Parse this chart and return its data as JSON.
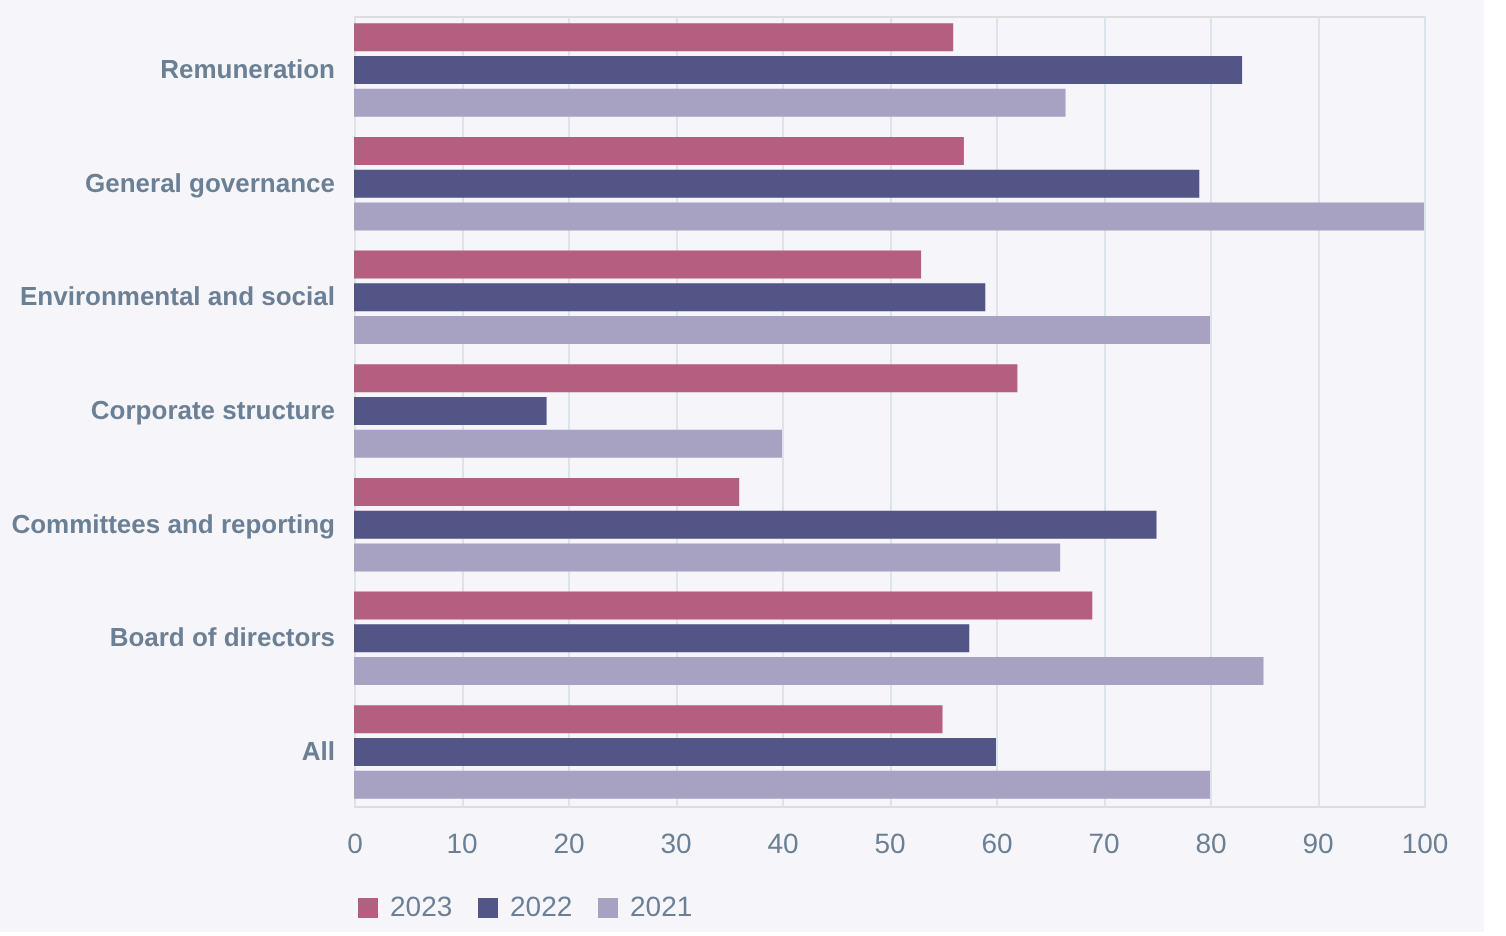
{
  "chart_data": {
    "type": "bar",
    "orientation": "horizontal",
    "categories": [
      "Remuneration",
      "General governance",
      "Environmental and social",
      "Corporate structure",
      "Committees and reporting",
      "Board of directors",
      "All"
    ],
    "series": [
      {
        "name": "2023",
        "color": "#b55f80",
        "values": [
          56,
          57,
          53,
          62,
          36,
          69,
          55
        ]
      },
      {
        "name": "2022",
        "color": "#535587",
        "values": [
          83,
          79,
          59,
          18,
          75,
          57.5,
          60
        ]
      },
      {
        "name": "2021",
        "color": "#a7a2c2",
        "values": [
          66.5,
          100,
          80,
          40,
          66,
          85,
          80
        ]
      }
    ],
    "xlim": [
      0,
      100
    ],
    "xticks": [
      0,
      10,
      20,
      30,
      40,
      50,
      60,
      70,
      80,
      90,
      100
    ],
    "grid": "x",
    "legend": "bottom"
  }
}
